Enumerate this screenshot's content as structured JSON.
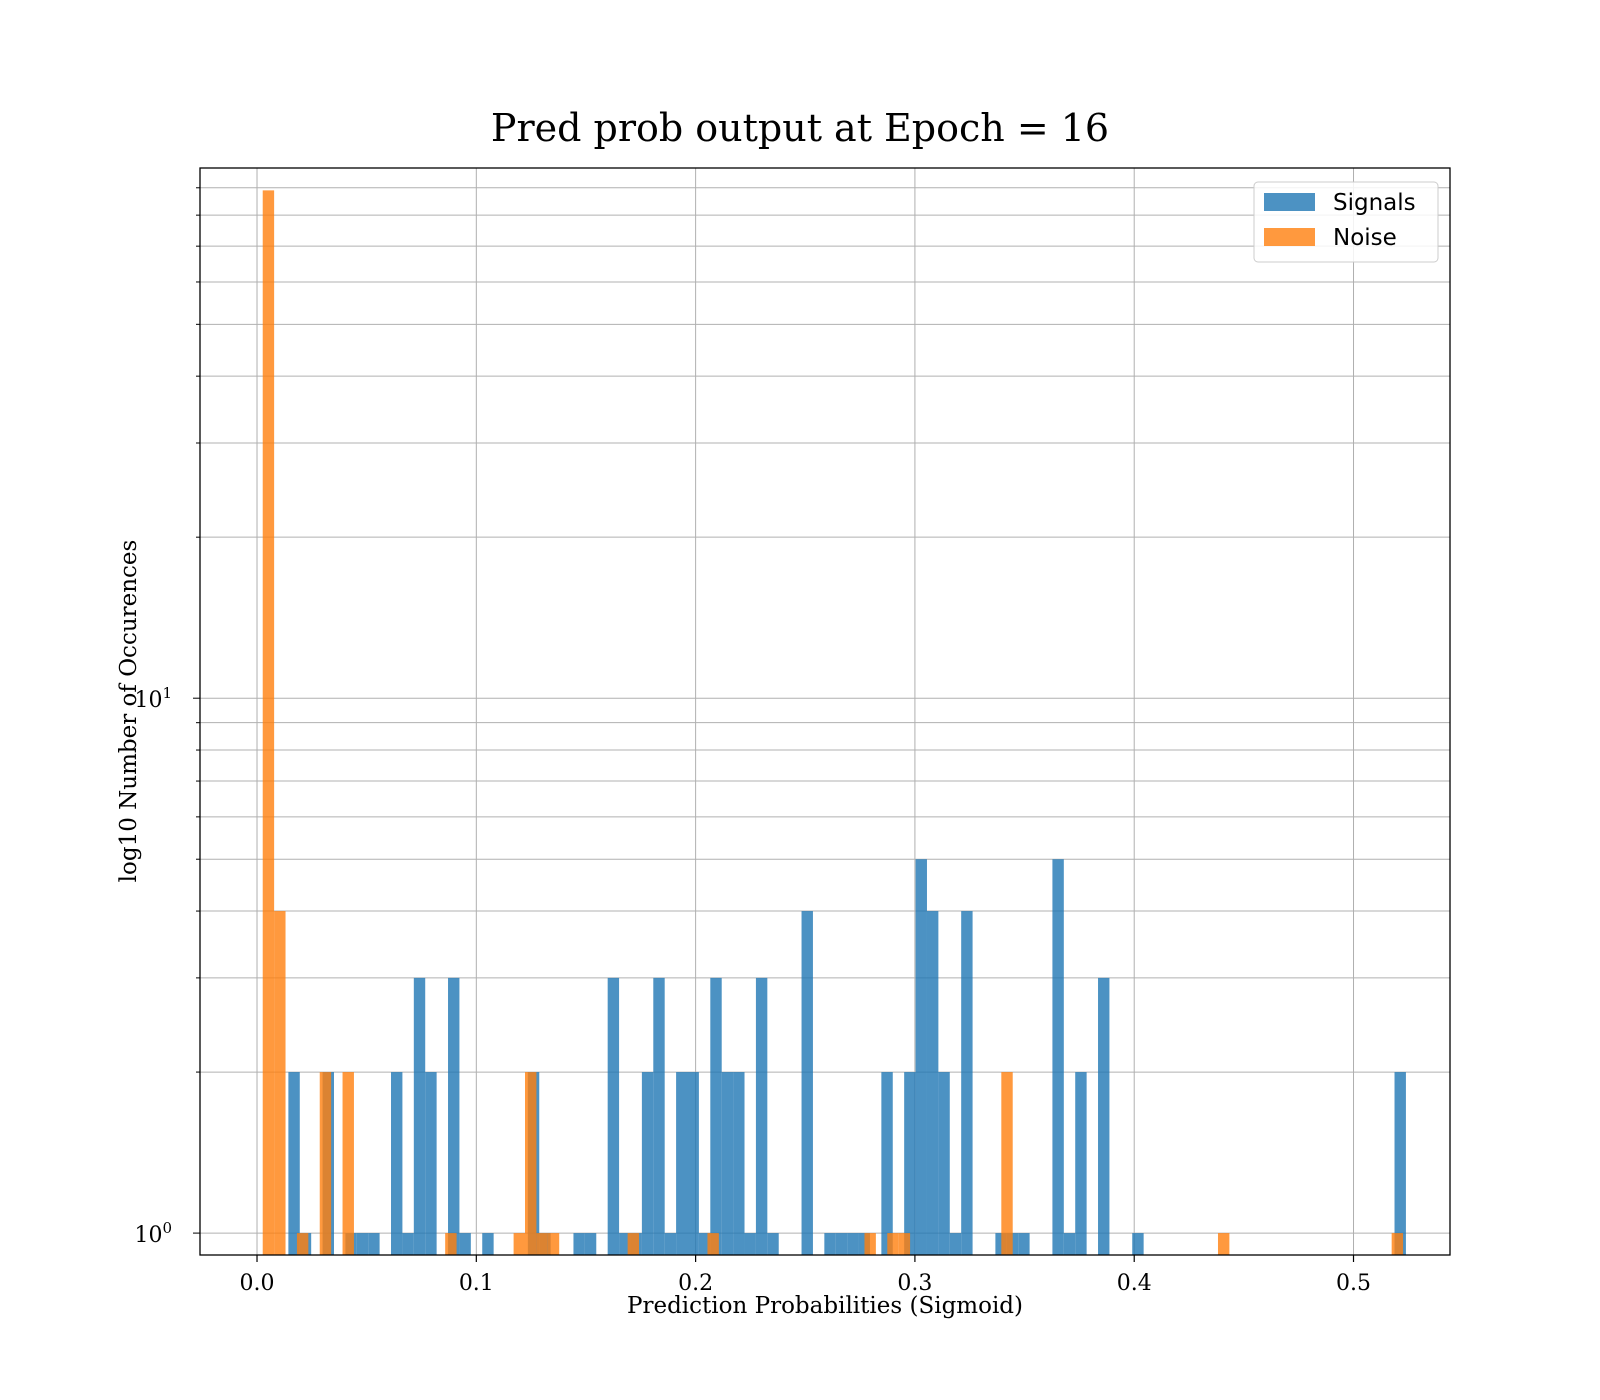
{
  "chart_data": {
    "type": "bar",
    "title": "Pred prob output at Epoch = 16",
    "xlabel": "Prediction Probabilities (Sigmoid)",
    "ylabel": "log10 Number of Occurences",
    "xlim": [
      -0.026,
      0.544
    ],
    "ylim": [
      0.91,
      98
    ],
    "yscale": "log",
    "grid": true,
    "legend_position": "top-right",
    "bin_width": 0.0052,
    "x_ticks": [
      {
        "value": 0.0,
        "label": "0.0"
      },
      {
        "value": 0.1,
        "label": "0.1"
      },
      {
        "value": 0.2,
        "label": "0.2"
      },
      {
        "value": 0.3,
        "label": "0.3"
      },
      {
        "value": 0.4,
        "label": "0.4"
      },
      {
        "value": 0.5,
        "label": "0.5"
      }
    ],
    "y_ticks": [
      {
        "value": 1,
        "base": "10",
        "exp": "0"
      },
      {
        "value": 10,
        "base": "10",
        "exp": "1"
      }
    ],
    "series": [
      {
        "name": "Signals",
        "color": "#1f77b4",
        "opacity": 0.8,
        "bins": [
          [
            0.0143,
            2
          ],
          [
            0.0195,
            1
          ],
          [
            0.0299,
            2
          ],
          [
            0.0403,
            1
          ],
          [
            0.0455,
            1
          ],
          [
            0.0507,
            1
          ],
          [
            0.0611,
            2
          ],
          [
            0.0663,
            1
          ],
          [
            0.0715,
            3
          ],
          [
            0.0767,
            2
          ],
          [
            0.0871,
            3
          ],
          [
            0.0923,
            1
          ],
          [
            0.1027,
            1
          ],
          [
            0.1235,
            2
          ],
          [
            0.1287,
            1
          ],
          [
            0.1443,
            1
          ],
          [
            0.1495,
            1
          ],
          [
            0.1599,
            3
          ],
          [
            0.1651,
            1
          ],
          [
            0.1703,
            1
          ],
          [
            0.1755,
            2
          ],
          [
            0.1807,
            3
          ],
          [
            0.1859,
            1
          ],
          [
            0.1911,
            2
          ],
          [
            0.1963,
            2
          ],
          [
            0.2015,
            1
          ],
          [
            0.2067,
            3
          ],
          [
            0.2119,
            2
          ],
          [
            0.2171,
            2
          ],
          [
            0.2223,
            1
          ],
          [
            0.2275,
            3
          ],
          [
            0.2327,
            1
          ],
          [
            0.2483,
            4
          ],
          [
            0.2587,
            1
          ],
          [
            0.2639,
            1
          ],
          [
            0.2691,
            1
          ],
          [
            0.2743,
            1
          ],
          [
            0.2847,
            2
          ],
          [
            0.2951,
            2
          ],
          [
            0.3003,
            5
          ],
          [
            0.3055,
            4
          ],
          [
            0.3107,
            2
          ],
          [
            0.3159,
            1
          ],
          [
            0.3211,
            4
          ],
          [
            0.3367,
            1
          ],
          [
            0.3419,
            1
          ],
          [
            0.3471,
            1
          ],
          [
            0.3627,
            5
          ],
          [
            0.3679,
            1
          ],
          [
            0.3731,
            2
          ],
          [
            0.3835,
            3
          ],
          [
            0.3991,
            1
          ],
          [
            0.5187,
            2
          ]
        ]
      },
      {
        "name": "Noise",
        "color": "#ff7f0e",
        "opacity": 0.8,
        "bins": [
          [
            0.0026,
            89
          ],
          [
            0.0078,
            4
          ],
          [
            0.0182,
            1
          ],
          [
            0.0286,
            2
          ],
          [
            0.039,
            2
          ],
          [
            0.0858,
            1
          ],
          [
            0.117,
            1
          ],
          [
            0.1222,
            2
          ],
          [
            0.1274,
            1
          ],
          [
            0.1326,
            1
          ],
          [
            0.169,
            1
          ],
          [
            0.2054,
            1
          ],
          [
            0.277,
            1
          ],
          [
            0.2874,
            1
          ],
          [
            0.2926,
            1
          ],
          [
            0.3394,
            2
          ],
          [
            0.4382,
            1
          ],
          [
            0.5174,
            1
          ]
        ]
      }
    ]
  }
}
